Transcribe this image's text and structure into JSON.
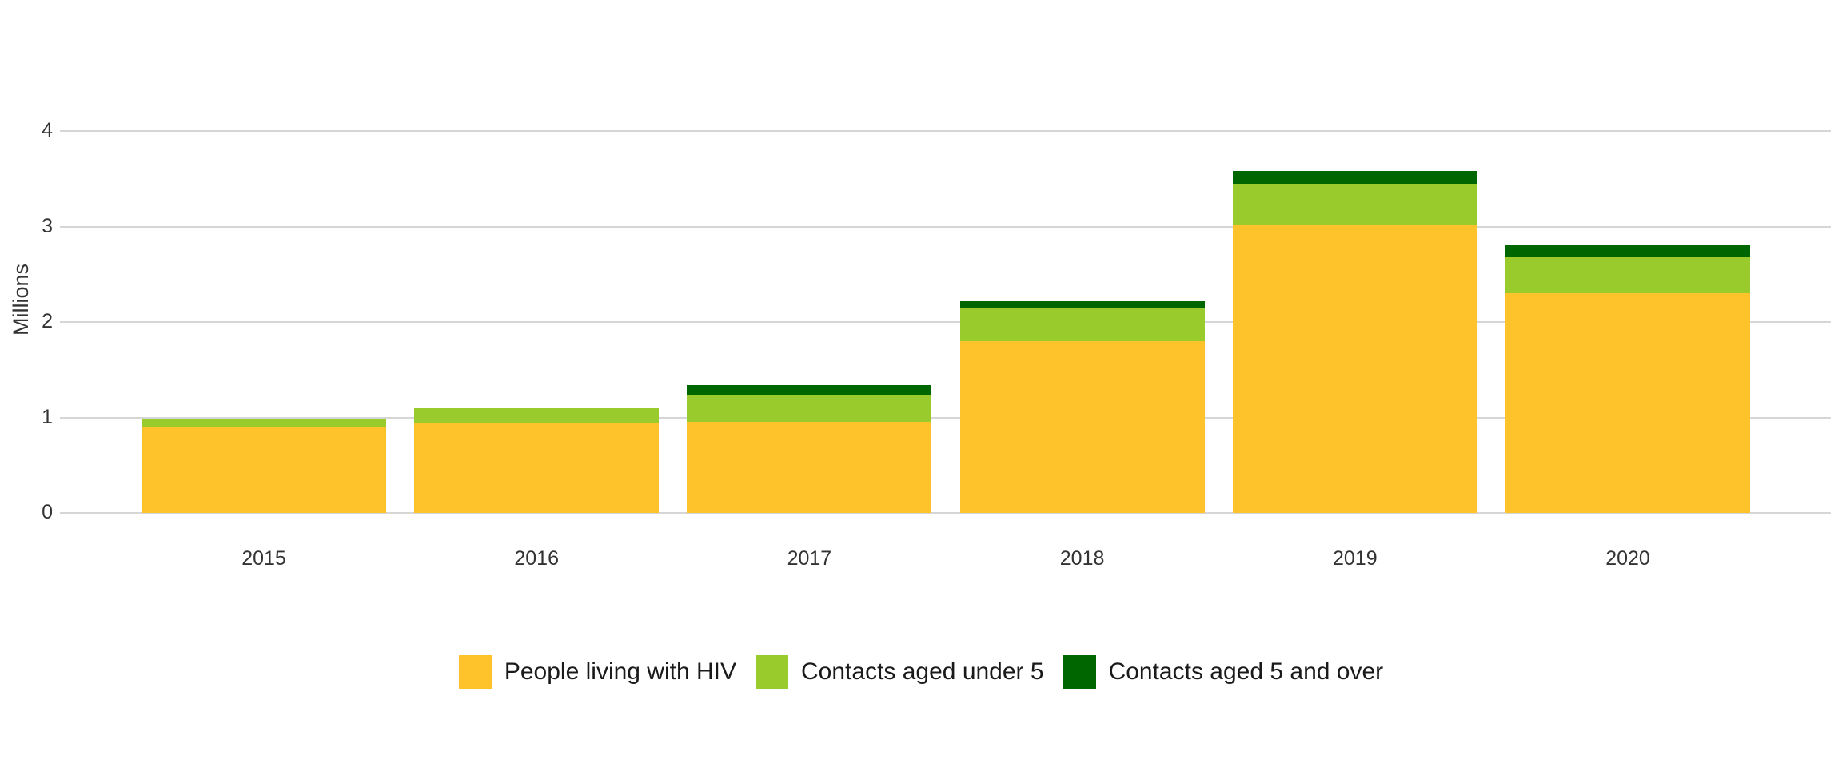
{
  "chart": {
    "y_axis_title": "Millions",
    "y_ticks": [
      0,
      1,
      2,
      3,
      4
    ],
    "gridline_color": "#d6d6d6",
    "axis_text_color": "#333333",
    "legend_text_color": "#1a1a1a",
    "background_color": "#ffffff"
  },
  "chart_data": {
    "type": "bar",
    "stacked": true,
    "categories": [
      "2015",
      "2016",
      "2017",
      "2018",
      "2019",
      "2020"
    ],
    "series": [
      {
        "name": "People living with HIV",
        "color": "#FEC32B",
        "values": [
          0.9,
          0.94,
          0.95,
          1.8,
          3.02,
          2.3
        ]
      },
      {
        "name": "Contacts aged under 5",
        "color": "#9ACB2D",
        "values": [
          0.09,
          0.16,
          0.28,
          0.34,
          0.43,
          0.38
        ]
      },
      {
        "name": "Contacts aged 5 and over",
        "color": "#006600",
        "values": [
          0.0,
          0.0,
          0.11,
          0.08,
          0.13,
          0.12
        ]
      }
    ],
    "title": "",
    "xlabel": "",
    "ylabel": "Millions",
    "ylim": [
      0,
      4
    ],
    "grid": true,
    "legend_position": "bottom"
  }
}
